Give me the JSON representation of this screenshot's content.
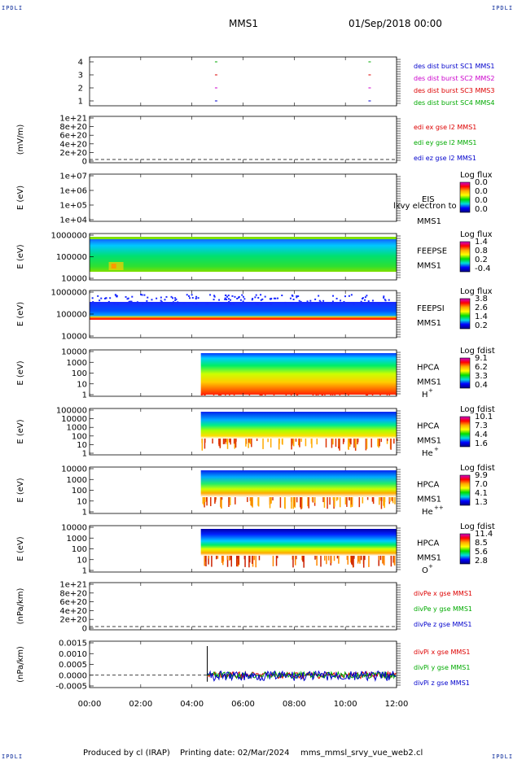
{
  "header": {
    "spacecraft": "MMS1",
    "datetime": "01/Sep/2018 00:00",
    "corner_mark": "IPDLI"
  },
  "footer": {
    "produced_by": "Produced by cl (IRAP)",
    "printing_date": "Printing date: 02/Mar/2024",
    "script": "mms_mmsl_srvy_vue_web2.cl"
  },
  "chart_data": [
    {
      "type": "scatter",
      "ylim": [
        0.5,
        4.5
      ],
      "y_ticks": [
        "4",
        "3",
        "2",
        "1"
      ],
      "x_ticks": [],
      "series": [
        {
          "name": "des dist burst SC1 MMS1",
          "color": "#0000cc",
          "y": 1,
          "x_hours": [
            4.9,
            10.9
          ]
        },
        {
          "name": "des dist burst SC2 MMS2",
          "color": "#cc00cc",
          "y": 2,
          "x_hours": [
            4.9,
            10.9
          ]
        },
        {
          "name": "des dist burst SC3 MMS3",
          "color": "#dd0000",
          "y": 3,
          "x_hours": [
            4.9,
            10.9
          ]
        },
        {
          "name": "des dist burst SC4 MMS4",
          "color": "#00aa00",
          "y": 4,
          "x_hours": [
            4.9,
            10.9
          ]
        }
      ]
    },
    {
      "type": "line",
      "ylabel": "(mV/m)",
      "y_ticks": [
        "1e+21",
        "8e+20",
        "6e+20",
        "4e+20",
        "2e+20",
        "0"
      ],
      "series": [
        {
          "name": "edi ex gse l2 MMS1",
          "color": "#dd0000"
        },
        {
          "name": "edi ey gse l2 MMS1",
          "color": "#00aa00"
        },
        {
          "name": "edi ez gse l2 MMS1",
          "color": "#0000cc"
        }
      ]
    },
    {
      "type": "heatmap",
      "ylabel": "E (eV)",
      "y_ticks": [
        "1e+07",
        "1e+06",
        "1e+05",
        "1e+04"
      ],
      "labels": [
        "EIS",
        "MMS1"
      ],
      "overlay": "lkvy electron to",
      "colorbar": {
        "title": "Log flux",
        "ticks": [
          "0.0",
          "0.0",
          "0.0",
          "0.0"
        ]
      }
    },
    {
      "type": "heatmap",
      "ylabel": "E (eV)",
      "y_ticks": [
        "1000000",
        "100000",
        "10000"
      ],
      "labels": [
        "FEEPSE",
        "MMS1"
      ],
      "colorbar": {
        "title": "Log flux",
        "ticks": [
          "1.4",
          "0.8",
          "0.2",
          "-0.4"
        ]
      }
    },
    {
      "type": "heatmap",
      "ylabel": "E (eV)",
      "y_ticks": [
        "1000000",
        "100000",
        "10000"
      ],
      "labels": [
        "FEEPSI",
        "MMS1"
      ],
      "colorbar": {
        "title": "Log flux",
        "ticks": [
          "3.8",
          "2.6",
          "1.4",
          "0.2"
        ]
      }
    },
    {
      "type": "heatmap",
      "ylabel": "E (eV)",
      "y_ticks": [
        "10000",
        "1000",
        "100",
        "10",
        "1"
      ],
      "labels": [
        "HPCA",
        "MMS1"
      ],
      "species": "H",
      "species_sup": "+",
      "colorbar": {
        "title": "Log fdist",
        "ticks": [
          "9.1",
          "6.2",
          "3.3",
          "0.4"
        ]
      }
    },
    {
      "type": "heatmap",
      "ylabel": "E (eV)",
      "y_ticks": [
        "100000",
        "10000",
        "1000",
        "100",
        "10",
        "1"
      ],
      "labels": [
        "HPCA",
        "MMS1"
      ],
      "species": "He",
      "species_sup": "+",
      "colorbar": {
        "title": "Log fdist",
        "ticks": [
          "10.1",
          "7.3",
          "4.4",
          "1.6"
        ]
      }
    },
    {
      "type": "heatmap",
      "ylabel": "E (eV)",
      "y_ticks": [
        "10000",
        "1000",
        "100",
        "10",
        "1"
      ],
      "labels": [
        "HPCA",
        "MMS1"
      ],
      "species": "He",
      "species_sup": "++",
      "colorbar": {
        "title": "Log fdist",
        "ticks": [
          "9.9",
          "7.0",
          "4.1",
          "1.3"
        ]
      }
    },
    {
      "type": "heatmap",
      "ylabel": "E (eV)",
      "y_ticks": [
        "10000",
        "1000",
        "100",
        "10",
        "1"
      ],
      "labels": [
        "HPCA",
        "MMS1"
      ],
      "species": "O",
      "species_sup": "+",
      "colorbar": {
        "title": "Log fdist",
        "ticks": [
          "11.4",
          "8.5",
          "5.6",
          "2.8"
        ]
      }
    },
    {
      "type": "line",
      "ylabel": "(nPa/km)",
      "y_ticks": [
        "1e+21",
        "8e+20",
        "6e+20",
        "4e+20",
        "2e+20",
        "0"
      ],
      "series": [
        {
          "name": "divPe x gse MMS1",
          "color": "#dd0000"
        },
        {
          "name": "divPe y gse MMS1",
          "color": "#00aa00"
        },
        {
          "name": "divPe z gse MMS1",
          "color": "#0000cc"
        }
      ]
    },
    {
      "type": "line",
      "ylabel": "(nPa/km)",
      "y_ticks": [
        "0.0015",
        "0.0010",
        "0.0005",
        "0.0000",
        "-0.0005"
      ],
      "series": [
        {
          "name": "divPi x gse MMS1",
          "color": "#dd0000"
        },
        {
          "name": "divPi y gse MMS1",
          "color": "#00aa00"
        },
        {
          "name": "divPi z gse MMS1",
          "color": "#0000cc"
        }
      ]
    }
  ],
  "x_axis": {
    "ticks": [
      "00:00",
      "02:00",
      "04:00",
      "06:00",
      "08:00",
      "10:00",
      "12:00"
    ],
    "range_hours": [
      0,
      12
    ]
  },
  "colorbar_scale": [
    "#cc00cc",
    "#ff0000",
    "#ffaa00",
    "#ffff00",
    "#00dd00",
    "#00dddd",
    "#0000ff",
    "#000080"
  ]
}
